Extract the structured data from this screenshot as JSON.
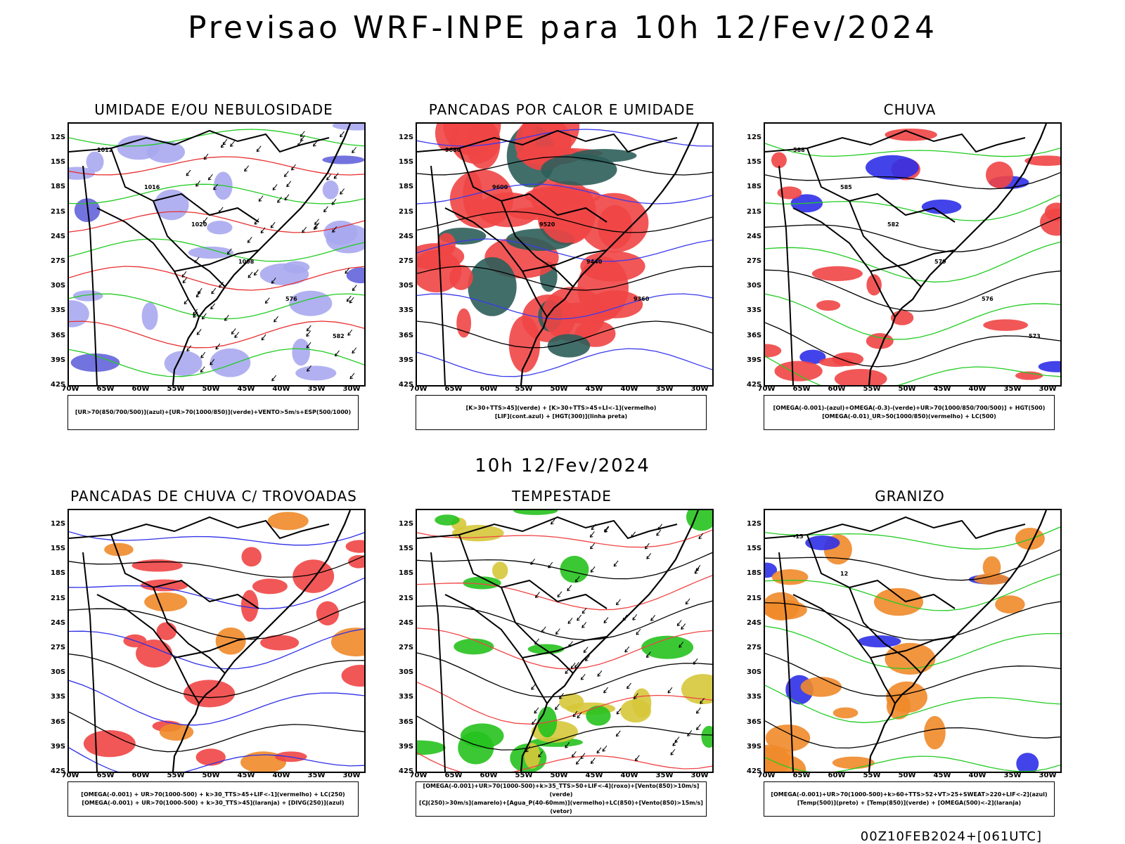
{
  "header": {
    "title": "Previsao WRF-INPE  para 10h 12/Fev/2024",
    "mid_title": "10h 12/Fev/2024",
    "run_label": "00Z10FEB2024+[061UTC]"
  },
  "axes": {
    "lat_labels": [
      "12S",
      "15S",
      "18S",
      "21S",
      "24S",
      "27S",
      "30S",
      "33S",
      "36S",
      "39S",
      "42S"
    ],
    "lon_labels": [
      "70W",
      "65W",
      "60W",
      "55W",
      "50W",
      "45W",
      "40W",
      "35W",
      "30W"
    ]
  },
  "panels": [
    {
      "title": "UMIDADE E/OU NEBULOSIDADE",
      "legend": [
        "[UR>70(850/700/500)](azul)+[UR>70(1000/850)](verde)+VENTO>5m/s+ESP(500/1000)"
      ],
      "colors": {
        "fill1": "#a9a9f0",
        "fill2": "#6464dc",
        "line1": "#22cc22",
        "line2": "#e83030"
      },
      "contour_labels": [
        "1012",
        "1016",
        "1020",
        "1008",
        "576",
        "582"
      ]
    },
    {
      "title": "PANCADAS POR CALOR E UMIDADE",
      "legend": [
        "[K>30+TTS>45](verde) + [K>30+TTS>45+LI<-1](vermelho)",
        "[LIF](cont.azul) + [HGT(300)](linha preta)"
      ],
      "colors": {
        "fill1": "#f04545",
        "fill2": "#2e5e5a",
        "line1": "#3a3aee",
        "line2": "#000000"
      },
      "contour_labels": [
        "9680",
        "9600",
        "9520",
        "9440",
        "9360"
      ]
    },
    {
      "title": "CHUVA",
      "legend": [
        "[OMEGA(-0.001)-(azul)+OMEGA(-0.3)-(verde)+UR>70(1000/850/700/500)] + HGT(500)",
        "[OMEGA(-0.01)_UR>50(1000/850)(vermelho) + LC(500)"
      ],
      "colors": {
        "fill1": "#f04545",
        "fill2": "#2f2fe8",
        "line1": "#22cc22",
        "line2": "#000000"
      },
      "contour_labels": [
        "588",
        "585",
        "582",
        "579",
        "576",
        "573"
      ]
    },
    {
      "title": "PANCADAS DE CHUVA C/ TROVOADAS",
      "legend": [
        "[OMEGA(-0.001) + UR>70(1000-500) + k>30_TTS>45+LIF<-1](vermelho) + LC(250)",
        "[OMEGA(-0.001) + UR>70(1000-500) + k>30_TTS>45](laranja) + [DIVG(250)](azul)"
      ],
      "colors": {
        "fill1": "#f04545",
        "fill2": "#f08a2a",
        "line1": "#2f2fe8",
        "line2": "#000000"
      },
      "contour_labels": []
    },
    {
      "title": "TEMPESTADE",
      "legend": [
        "[OMEGA(-0.001)+UR>70(1000-500)+k>35_TTS>50+LIF<-4](roxo)+[Vento(850)>10m/s](verde)",
        "[CJ(250)>30m/s](amarelo)+[Agua_P(40-60mm)](vermelho)+LC(850)+[Vento(850)>15m/s](vetor)"
      ],
      "colors": {
        "fill1": "#26c21e",
        "fill2": "#d6c83a",
        "line1": "#f04545",
        "line2": "#000000"
      },
      "contour_labels": []
    },
    {
      "title": "GRANIZO",
      "legend": [
        "[OMEGA(-0.001)+UR>70(1000-500)+k>60+TTS>52+VT>25+SWEAT>220+LIF<-2](azul)",
        "[Temp(500)](preto) + [Temp(850)](verde) + [OMEGA(500)<-2](laranja)"
      ],
      "colors": {
        "fill1": "#f08a2a",
        "fill2": "#2f2fe8",
        "line1": "#22cc22",
        "line2": "#000000"
      },
      "contour_labels": [
        "-15",
        "12"
      ]
    }
  ]
}
